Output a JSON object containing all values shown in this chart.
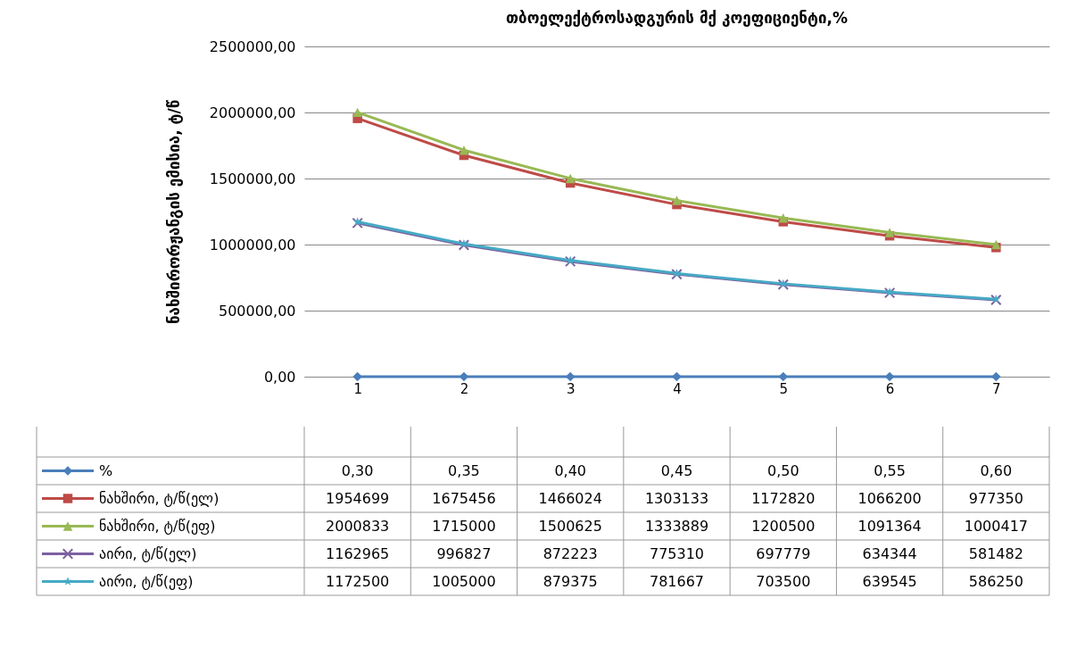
{
  "chart_data": {
    "type": "line",
    "title": "თბოელექტროსადგურის მქ კოეფიციენტი,%",
    "ylabel": "ნახშირორჟანგის ემისია, ტ/წ",
    "categories": [
      "1",
      "2",
      "3",
      "4",
      "5",
      "6",
      "7"
    ],
    "series": [
      {
        "name": "%",
        "color": "#4a7ebb",
        "marker": "diamond",
        "values": [
          0.3,
          0.35,
          0.4,
          0.45,
          0.5,
          0.55,
          0.6
        ],
        "value_labels": [
          "0,30",
          "0,35",
          "0,40",
          "0,45",
          "0,50",
          "0,55",
          "0,60"
        ]
      },
      {
        "name": "ნახშირი, ტ/წ(ელ)",
        "color": "#be4b48",
        "marker": "square",
        "values": [
          1954699,
          1675456,
          1466024,
          1303133,
          1172820,
          1066200,
          977350
        ],
        "value_labels": [
          "1954699",
          "1675456",
          "1466024",
          "1303133",
          "1172820",
          "1066200",
          "977350"
        ]
      },
      {
        "name": "ნახშირი, ტ/წ(ეფ)",
        "color": "#98b954",
        "marker": "triangle",
        "values": [
          2000833,
          1715000,
          1500625,
          1333889,
          1200500,
          1091364,
          1000417
        ],
        "value_labels": [
          "2000833",
          "1715000",
          "1500625",
          "1333889",
          "1200500",
          "1091364",
          "1000417"
        ]
      },
      {
        "name": "აირი, ტ/წ(ელ)",
        "color": "#7d60a0",
        "marker": "cross",
        "values": [
          1162965,
          996827,
          872223,
          775310,
          697779,
          634344,
          581482
        ],
        "value_labels": [
          "1162965",
          "996827",
          "872223",
          "775310",
          "697779",
          "634344",
          "581482"
        ]
      },
      {
        "name": "აირი, ტ/წ(ეფ)",
        "color": "#46aac5",
        "marker": "star",
        "values": [
          1172500,
          1005000,
          879375,
          781667,
          703500,
          639545,
          586250
        ],
        "value_labels": [
          "1172500",
          "1005000",
          "879375",
          "781667",
          "703500",
          "639545",
          "586250"
        ]
      }
    ],
    "ylim": [
      0,
      2500000
    ],
    "yticks": [
      {
        "value": 0,
        "label": "0,00"
      },
      {
        "value": 500000,
        "label": "500000,00"
      },
      {
        "value": 1000000,
        "label": "1000000,00"
      },
      {
        "value": 1500000,
        "label": "1500000,00"
      },
      {
        "value": 2000000,
        "label": "2000000,00"
      },
      {
        "value": 2500000,
        "label": "2500000,00"
      }
    ],
    "grid": "y",
    "legend": "bottom left"
  }
}
